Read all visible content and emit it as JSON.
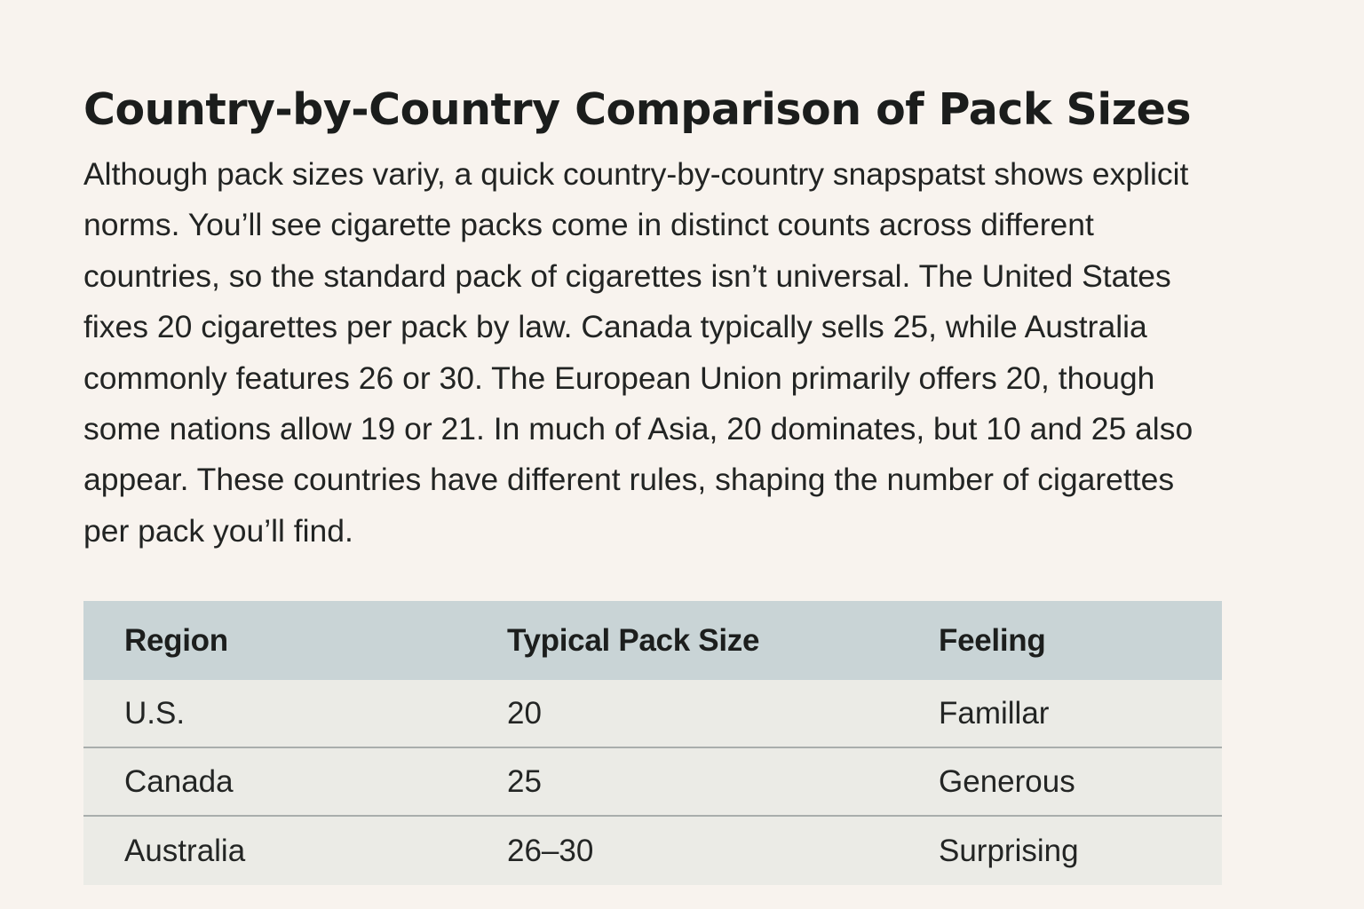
{
  "article": {
    "title": "Country-by-Country Comparison of Pack Sizes",
    "paragraph": "Although pack sizes variy, a quick country-by-country snapspatst shows explicit norms. You’ll see cigarette packs come in distinct counts across different countries, so the standard pack of cigarettes isn’t universal. The United States fixes 20 cigarettes per pack by law. Canada typically sells 25, while Australia commonly features 26 or 30. The European Union primarily offers 20, though some nations allow 19 or 21. In much of Asia, 20 dominates, but 10 and 25 also appear. These countries have different rules, shaping the number of cigarettes per pack you’ll find."
  },
  "table": {
    "headers": [
      "Region",
      "Typical Pack Size",
      "Feeling"
    ],
    "rows": [
      [
        "U.S.",
        "20",
        "Famillar"
      ],
      [
        "Canada",
        "25",
        "Generous"
      ],
      [
        "Australia",
        "26–30",
        "Surprising"
      ]
    ]
  },
  "colors": {
    "background": "#f8f3ee",
    "header_row": "#c9d4d6",
    "body_row": "#ebebe6",
    "row_divider": "#a9aeac",
    "text": "#1f2120"
  }
}
